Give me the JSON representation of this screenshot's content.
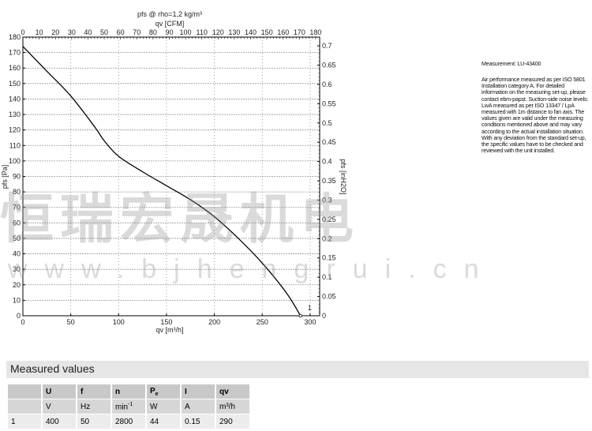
{
  "chart_data": {
    "type": "line",
    "title": "pfs @ rho=1,2 kg/m³",
    "xlabel": "qv [m³/h]",
    "ylabel": "pfs [Pa]",
    "x2label": "qv [CFM]",
    "y2label": "pfs [inH2O]",
    "xlim": [
      0,
      310
    ],
    "ylim": [
      0,
      180
    ],
    "x_ticks": [
      0,
      50,
      100,
      150,
      200,
      250,
      300
    ],
    "y_ticks": [
      0,
      10,
      20,
      30,
      40,
      50,
      60,
      70,
      80,
      90,
      100,
      110,
      120,
      130,
      140,
      150,
      160,
      170,
      180
    ],
    "x2_ticks": [
      0,
      10,
      20,
      30,
      40,
      50,
      60,
      70,
      80,
      90,
      100,
      110,
      120,
      130,
      140,
      150,
      160,
      170,
      180
    ],
    "y2_ticks": [
      "0",
      "0.05",
      "0.1",
      "0.15",
      "0.2",
      "0.25",
      "0.3",
      "0.35",
      "0.4",
      "0.45",
      "0.5",
      "0.55",
      "0.6",
      "0.65",
      "0.7"
    ],
    "grid": true,
    "series": [
      {
        "name": "1",
        "color": "#000000",
        "x": [
          0,
          25,
          50,
          75,
          85,
          100,
          125,
          150,
          175,
          200,
          225,
          250,
          275,
          290
        ],
        "y": [
          174,
          158,
          142,
          122,
          113,
          103,
          93,
          84,
          75,
          64,
          50,
          34,
          15,
          0
        ]
      }
    ]
  },
  "note": {
    "measurement": "Measurement: LU-43400",
    "text": "Air performance measured as per ISO 5801 Installation category A. For detailed information on the measuring set-up, please contact ebm-papst. Suction-side noise levels: LwA measured as per ISO 13347 / LpA measured with 1m distance to fan axis. The values given are valid under the measuring conditions mentioned above and may vary according to the actual installation situation. With any deviation from the standard set-up, the specific values have to be checked and reviewed with the unit installed."
  },
  "measured": {
    "title": "Measured values",
    "headers": [
      "",
      "U",
      "f",
      "n",
      "P",
      "I",
      "qv"
    ],
    "pe_sub": "e",
    "units": [
      "",
      "V",
      "Hz",
      "min",
      "W",
      "A",
      "m³/h"
    ],
    "n_unit_sup": "-1",
    "rows": [
      [
        "1",
        "400",
        "50",
        "2800",
        "44",
        "0.15",
        "290"
      ]
    ]
  },
  "watermark": {
    "cn": "恒瑞宏晟机电",
    "url": "www.bjhengrui.cn"
  }
}
